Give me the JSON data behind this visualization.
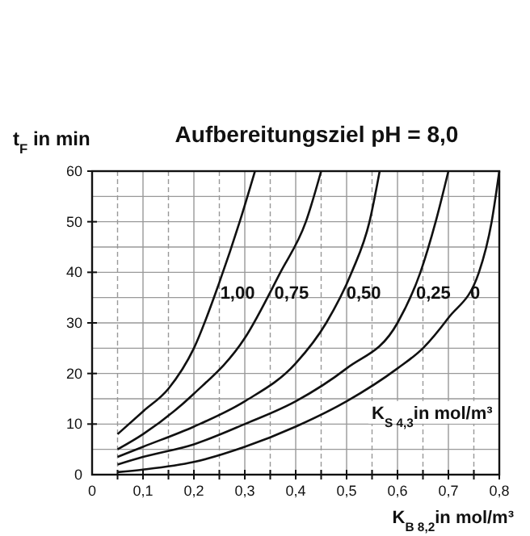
{
  "chart_data": {
    "type": "line",
    "title": "Aufbereitungsziel pH = 8,0",
    "xlabel": "K$_{B 8,2}$in mol/m³",
    "ylabel": "t$_{F}$ in min",
    "legend_title": "K$_{S 4,3}$in mol/m³",
    "xlim": [
      0,
      0.8
    ],
    "ylim": [
      0,
      60
    ],
    "xticks": [
      {
        "value": 0,
        "label": "0"
      },
      {
        "value": 0.05,
        "label": null
      },
      {
        "value": 0.1,
        "label": "0,1"
      },
      {
        "value": 0.15,
        "label": null
      },
      {
        "value": 0.2,
        "label": "0,2"
      },
      {
        "value": 0.25,
        "label": null
      },
      {
        "value": 0.3,
        "label": "0,3"
      },
      {
        "value": 0.35,
        "label": null
      },
      {
        "value": 0.4,
        "label": "0,4"
      },
      {
        "value": 0.45,
        "label": null
      },
      {
        "value": 0.5,
        "label": "0,5"
      },
      {
        "value": 0.55,
        "label": null
      },
      {
        "value": 0.6,
        "label": "0,6"
      },
      {
        "value": 0.65,
        "label": null
      },
      {
        "value": 0.7,
        "label": "0,7"
      },
      {
        "value": 0.75,
        "label": null
      },
      {
        "value": 0.8,
        "label": "0,8"
      }
    ],
    "yticks": [
      0,
      {
        "value": 5,
        "label": null
      },
      10,
      {
        "value": 15,
        "label": null
      },
      20,
      {
        "value": 25,
        "label": null
      },
      30,
      {
        "value": 35,
        "label": null
      },
      40,
      {
        "value": 45,
        "label": null
      },
      50,
      {
        "value": 55,
        "label": null
      },
      60
    ],
    "grid": true,
    "marker": "none",
    "line_style": "solid",
    "series": [
      {
        "name": "1,00",
        "color": "#111111",
        "x": [
          0.05,
          0.1,
          0.15,
          0.2,
          0.25,
          0.29,
          0.32
        ],
        "values": [
          8,
          12.5,
          17,
          25,
          38,
          50,
          60
        ]
      },
      {
        "name": "0,75",
        "color": "#111111",
        "x": [
          0.05,
          0.1,
          0.2,
          0.3,
          0.37,
          0.42,
          0.45
        ],
        "values": [
          5,
          8,
          16,
          27,
          40,
          50,
          60
        ]
      },
      {
        "name": "0,50",
        "color": "#111111",
        "x": [
          0.05,
          0.1,
          0.2,
          0.3,
          0.4,
          0.46,
          0.51,
          0.545,
          0.565
        ],
        "values": [
          3.5,
          5.5,
          9.5,
          14.5,
          22,
          30,
          40,
          50,
          60
        ]
      },
      {
        "name": "0,25",
        "color": "#111111",
        "x": [
          0.05,
          0.1,
          0.2,
          0.3,
          0.4,
          0.5,
          0.6,
          0.645,
          0.675,
          0.7
        ],
        "values": [
          2,
          3.5,
          6,
          10,
          14.5,
          21,
          30,
          40,
          50,
          60
        ]
      },
      {
        "name": "0",
        "color": "#111111",
        "x": [
          0.05,
          0.1,
          0.2,
          0.3,
          0.4,
          0.5,
          0.6,
          0.65,
          0.7,
          0.76,
          0.785,
          0.8
        ],
        "values": [
          0.5,
          1,
          2.5,
          5.5,
          9.5,
          14.5,
          21,
          25,
          31,
          40,
          50,
          60
        ]
      }
    ]
  }
}
